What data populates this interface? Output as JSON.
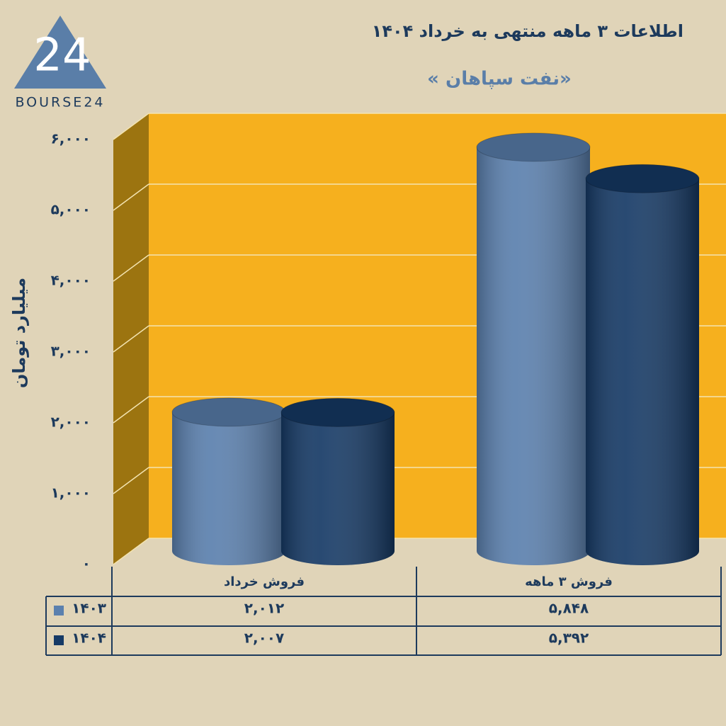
{
  "logo": {
    "mark": "24",
    "text": "BOURSE24"
  },
  "chart_data": {
    "type": "cylinder-bar",
    "title": "اطلاعات ۳ ماهه منتهی به خرداد ۱۴۰۴",
    "subtitle": "« نفت سپاهان»",
    "y_label": "میلیارد تومان",
    "categories": [
      "فروش خرداد",
      "فروش ۳ ماهه"
    ],
    "series": [
      {
        "name": "۱۴۰۳",
        "color": "#5b80ae",
        "values": [
          2012,
          5848
        ],
        "value_labels": [
          "۲,۰۱۲",
          "۵,۸۴۸"
        ]
      },
      {
        "name": "۱۴۰۴",
        "color": "#163a66",
        "values": [
          2007,
          5392
        ],
        "value_labels": [
          "۲,۰۰۷",
          "۵,۳۹۲"
        ]
      }
    ],
    "ylim": [
      0,
      6000
    ],
    "yticks": [
      {
        "value": 0,
        "label": "۰"
      },
      {
        "value": 1000,
        "label": "۱,۰۰۰"
      },
      {
        "value": 2000,
        "label": "۲,۰۰۰"
      },
      {
        "value": 3000,
        "label": "۳,۰۰۰"
      },
      {
        "value": 4000,
        "label": "۴,۰۰۰"
      },
      {
        "value": 5000,
        "label": "۵,۰۰۰"
      },
      {
        "value": 6000,
        "label": "۶,۰۰۰"
      }
    ],
    "grid": true
  }
}
